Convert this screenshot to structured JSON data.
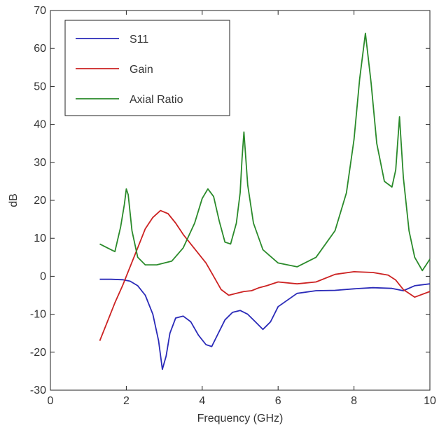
{
  "chart_data": {
    "type": "line",
    "title": "",
    "xlabel": "Frequency (GHz)",
    "ylabel": "dB",
    "xlim": [
      0,
      10
    ],
    "ylim": [
      -30,
      70
    ],
    "xticks": [
      0,
      2,
      4,
      6,
      8,
      10
    ],
    "yticks": [
      -30,
      -20,
      -10,
      0,
      10,
      20,
      30,
      40,
      50,
      60,
      70
    ],
    "grid": false,
    "legend_position": "top-left",
    "series": [
      {
        "name": "S11",
        "color": "#2a2ab8",
        "x": [
          1.3,
          1.6,
          1.9,
          2.1,
          2.3,
          2.5,
          2.7,
          2.85,
          2.95,
          3.05,
          3.15,
          3.3,
          3.5,
          3.7,
          3.9,
          4.1,
          4.25,
          4.4,
          4.6,
          4.8,
          5.0,
          5.2,
          5.4,
          5.6,
          5.8,
          6.0,
          6.5,
          7.0,
          7.5,
          8.0,
          8.5,
          9.0,
          9.3,
          9.6,
          10.0
        ],
        "y": [
          -0.8,
          -0.8,
          -0.9,
          -1.3,
          -2.5,
          -5.0,
          -10.0,
          -17.0,
          -24.5,
          -21.0,
          -15.0,
          -11.0,
          -10.5,
          -12.0,
          -15.5,
          -18.0,
          -18.5,
          -15.5,
          -11.5,
          -9.5,
          -9.0,
          -10.0,
          -12.0,
          -14.0,
          -12.0,
          -8.0,
          -4.5,
          -3.8,
          -3.7,
          -3.3,
          -3.0,
          -3.2,
          -3.8,
          -2.5,
          -2.0
        ]
      },
      {
        "name": "Gain",
        "color": "#cc2222",
        "x": [
          1.3,
          1.5,
          1.7,
          1.9,
          2.1,
          2.3,
          2.5,
          2.7,
          2.9,
          3.1,
          3.3,
          3.5,
          3.7,
          3.9,
          4.1,
          4.3,
          4.5,
          4.7,
          4.9,
          5.1,
          5.3,
          5.5,
          5.7,
          6.0,
          6.5,
          7.0,
          7.5,
          8.0,
          8.5,
          8.9,
          9.1,
          9.3,
          9.6,
          10.0
        ],
        "y": [
          -17.0,
          -12.0,
          -7.0,
          -2.5,
          2.5,
          7.5,
          12.5,
          15.5,
          17.3,
          16.5,
          14.0,
          11.0,
          8.5,
          6.0,
          3.5,
          0.0,
          -3.5,
          -5.0,
          -4.5,
          -4.0,
          -3.8,
          -3.0,
          -2.5,
          -1.5,
          -2.0,
          -1.5,
          0.5,
          1.2,
          1.0,
          0.3,
          -1.0,
          -3.5,
          -5.5,
          -4.0
        ]
      },
      {
        "name": "Axial Ratio",
        "color": "#2a8a2a",
        "x": [
          1.3,
          1.5,
          1.7,
          1.85,
          1.95,
          2.0,
          2.05,
          2.15,
          2.3,
          2.5,
          2.8,
          3.2,
          3.5,
          3.8,
          4.0,
          4.15,
          4.3,
          4.45,
          4.6,
          4.75,
          4.9,
          5.0,
          5.05,
          5.1,
          5.15,
          5.2,
          5.35,
          5.6,
          6.0,
          6.5,
          7.0,
          7.5,
          7.8,
          8.0,
          8.15,
          8.3,
          8.45,
          8.6,
          8.8,
          9.0,
          9.1,
          9.2,
          9.3,
          9.45,
          9.6,
          9.8,
          10.0
        ],
        "y": [
          8.5,
          7.5,
          6.5,
          13.0,
          19.0,
          23.0,
          21.5,
          12.0,
          5.0,
          3.0,
          3.0,
          4.0,
          7.5,
          14.0,
          20.5,
          23.0,
          21.0,
          14.5,
          9.0,
          8.5,
          14.0,
          22.0,
          31.0,
          38.0,
          31.0,
          24.0,
          14.0,
          7.0,
          3.5,
          2.5,
          5.0,
          12.0,
          22.0,
          36.0,
          52.0,
          64.0,
          51.0,
          35.0,
          25.0,
          23.5,
          28.0,
          42.0,
          26.0,
          12.0,
          5.0,
          1.5,
          4.5
        ]
      }
    ]
  }
}
